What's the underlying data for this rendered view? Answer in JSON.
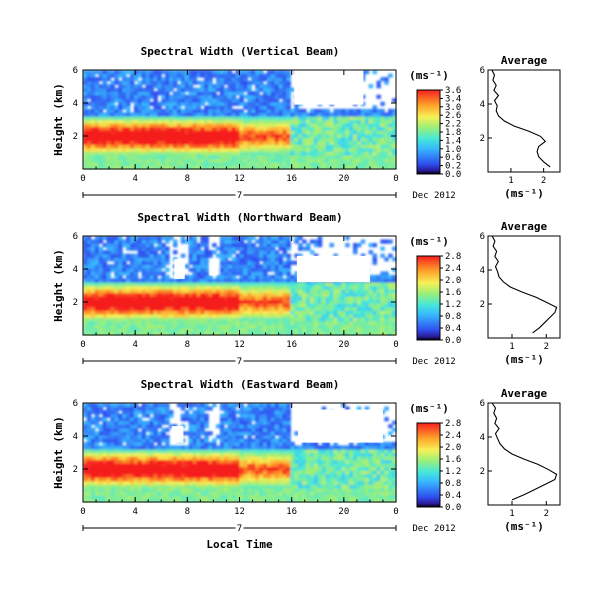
{
  "chart_data": [
    {
      "type": "heatmap",
      "title": "Spectral Width (Vertical Beam)",
      "ylabel": "Height (km)",
      "xlabel": "",
      "x_ticks": [
        "0",
        "4",
        "8",
        "12",
        "16",
        "20",
        "0"
      ],
      "y_ticks": [
        "6",
        "4",
        "2"
      ],
      "date_label": "7",
      "month_label": "Dec 2012",
      "xlim": [
        0,
        24
      ],
      "ylim": [
        0,
        6
      ],
      "colorbar": {
        "unit": "(ms⁻¹)",
        "ticks": [
          "3.6",
          "3.4",
          "3.0",
          "2.6",
          "2.2",
          "1.8",
          "1.4",
          "1.0",
          "0.6",
          "0.2",
          "0.0"
        ],
        "range": [
          0,
          3.6
        ]
      },
      "average_profile": {
        "title": "Average",
        "xlabel": "(ms⁻¹)",
        "x_ticks": [
          "1",
          "2"
        ],
        "xlim": [
          0.3,
          2.5
        ],
        "y_ticks": [
          "6",
          "4",
          "2"
        ],
        "ylim": [
          0,
          6
        ],
        "height": [
          0.3,
          0.6,
          0.9,
          1.2,
          1.5,
          1.8,
          2.1,
          2.4,
          2.7,
          3.0,
          3.3,
          3.6,
          3.9,
          4.2,
          4.5,
          4.8,
          5.1,
          5.4,
          5.7,
          6.0
        ],
        "width": [
          2.2,
          2.0,
          1.85,
          1.8,
          1.85,
          2.05,
          1.9,
          1.55,
          1.1,
          0.8,
          0.62,
          0.55,
          0.58,
          0.5,
          0.62,
          0.48,
          0.55,
          0.45,
          0.5,
          0.42
        ]
      }
    },
    {
      "type": "heatmap",
      "title": "Spectral Width (Northward Beam)",
      "ylabel": "Height (km)",
      "xlabel": "",
      "x_ticks": [
        "0",
        "4",
        "8",
        "12",
        "16",
        "20",
        "0"
      ],
      "y_ticks": [
        "6",
        "4",
        "2"
      ],
      "date_label": "7",
      "month_label": "Dec 2012",
      "xlim": [
        0,
        24
      ],
      "ylim": [
        0,
        6
      ],
      "colorbar": {
        "unit": "(ms⁻¹)",
        "ticks": [
          "2.8",
          "2.4",
          "2.0",
          "1.6",
          "1.2",
          "0.8",
          "0.4",
          "0.0"
        ],
        "range": [
          0,
          2.8
        ]
      },
      "average_profile": {
        "title": "Average",
        "xlabel": "(ms⁻¹)",
        "x_ticks": [
          "1",
          "2"
        ],
        "xlim": [
          0.3,
          2.4
        ],
        "y_ticks": [
          "6",
          "4",
          "2"
        ],
        "ylim": [
          0,
          6
        ],
        "height": [
          0.3,
          0.6,
          0.9,
          1.2,
          1.5,
          1.8,
          2.1,
          2.4,
          2.7,
          3.0,
          3.3,
          3.6,
          3.9,
          4.2,
          4.5,
          4.8,
          5.1,
          5.4,
          5.7,
          6.0
        ],
        "width": [
          1.6,
          1.8,
          1.95,
          2.1,
          2.25,
          2.3,
          2.0,
          1.7,
          1.3,
          0.95,
          0.75,
          0.62,
          0.58,
          0.52,
          0.6,
          0.5,
          0.55,
          0.45,
          0.5,
          0.42
        ]
      }
    },
    {
      "type": "heatmap",
      "title": "Spectral Width (Eastward Beam)",
      "ylabel": "Height (km)",
      "xlabel": "Local Time",
      "x_ticks": [
        "0",
        "4",
        "8",
        "12",
        "16",
        "20",
        "0"
      ],
      "y_ticks": [
        "6",
        "4",
        "2"
      ],
      "date_label": "7",
      "month_label": "Dec 2012",
      "xlim": [
        0,
        24
      ],
      "ylim": [
        0,
        6
      ],
      "colorbar": {
        "unit": "(ms⁻¹)",
        "ticks": [
          "2.8",
          "2.4",
          "2.0",
          "1.6",
          "1.2",
          "0.8",
          "0.4",
          "0.0"
        ],
        "range": [
          0,
          2.8
        ]
      },
      "average_profile": {
        "title": "Average",
        "xlabel": "(ms⁻¹)",
        "x_ticks": [
          "1",
          "2"
        ],
        "xlim": [
          0.3,
          2.4
        ],
        "y_ticks": [
          "6",
          "4",
          "2"
        ],
        "ylim": [
          0,
          6
        ],
        "height": [
          0.3,
          0.6,
          0.9,
          1.2,
          1.5,
          1.8,
          2.1,
          2.4,
          2.7,
          3.0,
          3.3,
          3.6,
          3.9,
          4.2,
          4.5,
          4.8,
          5.1,
          5.4,
          5.7,
          6.0
        ],
        "width": [
          1.0,
          1.35,
          1.65,
          1.95,
          2.25,
          2.3,
          2.05,
          1.75,
          1.35,
          1.0,
          0.78,
          0.65,
          0.58,
          0.52,
          0.62,
          0.5,
          0.55,
          0.47,
          0.52,
          0.42
        ]
      }
    }
  ]
}
